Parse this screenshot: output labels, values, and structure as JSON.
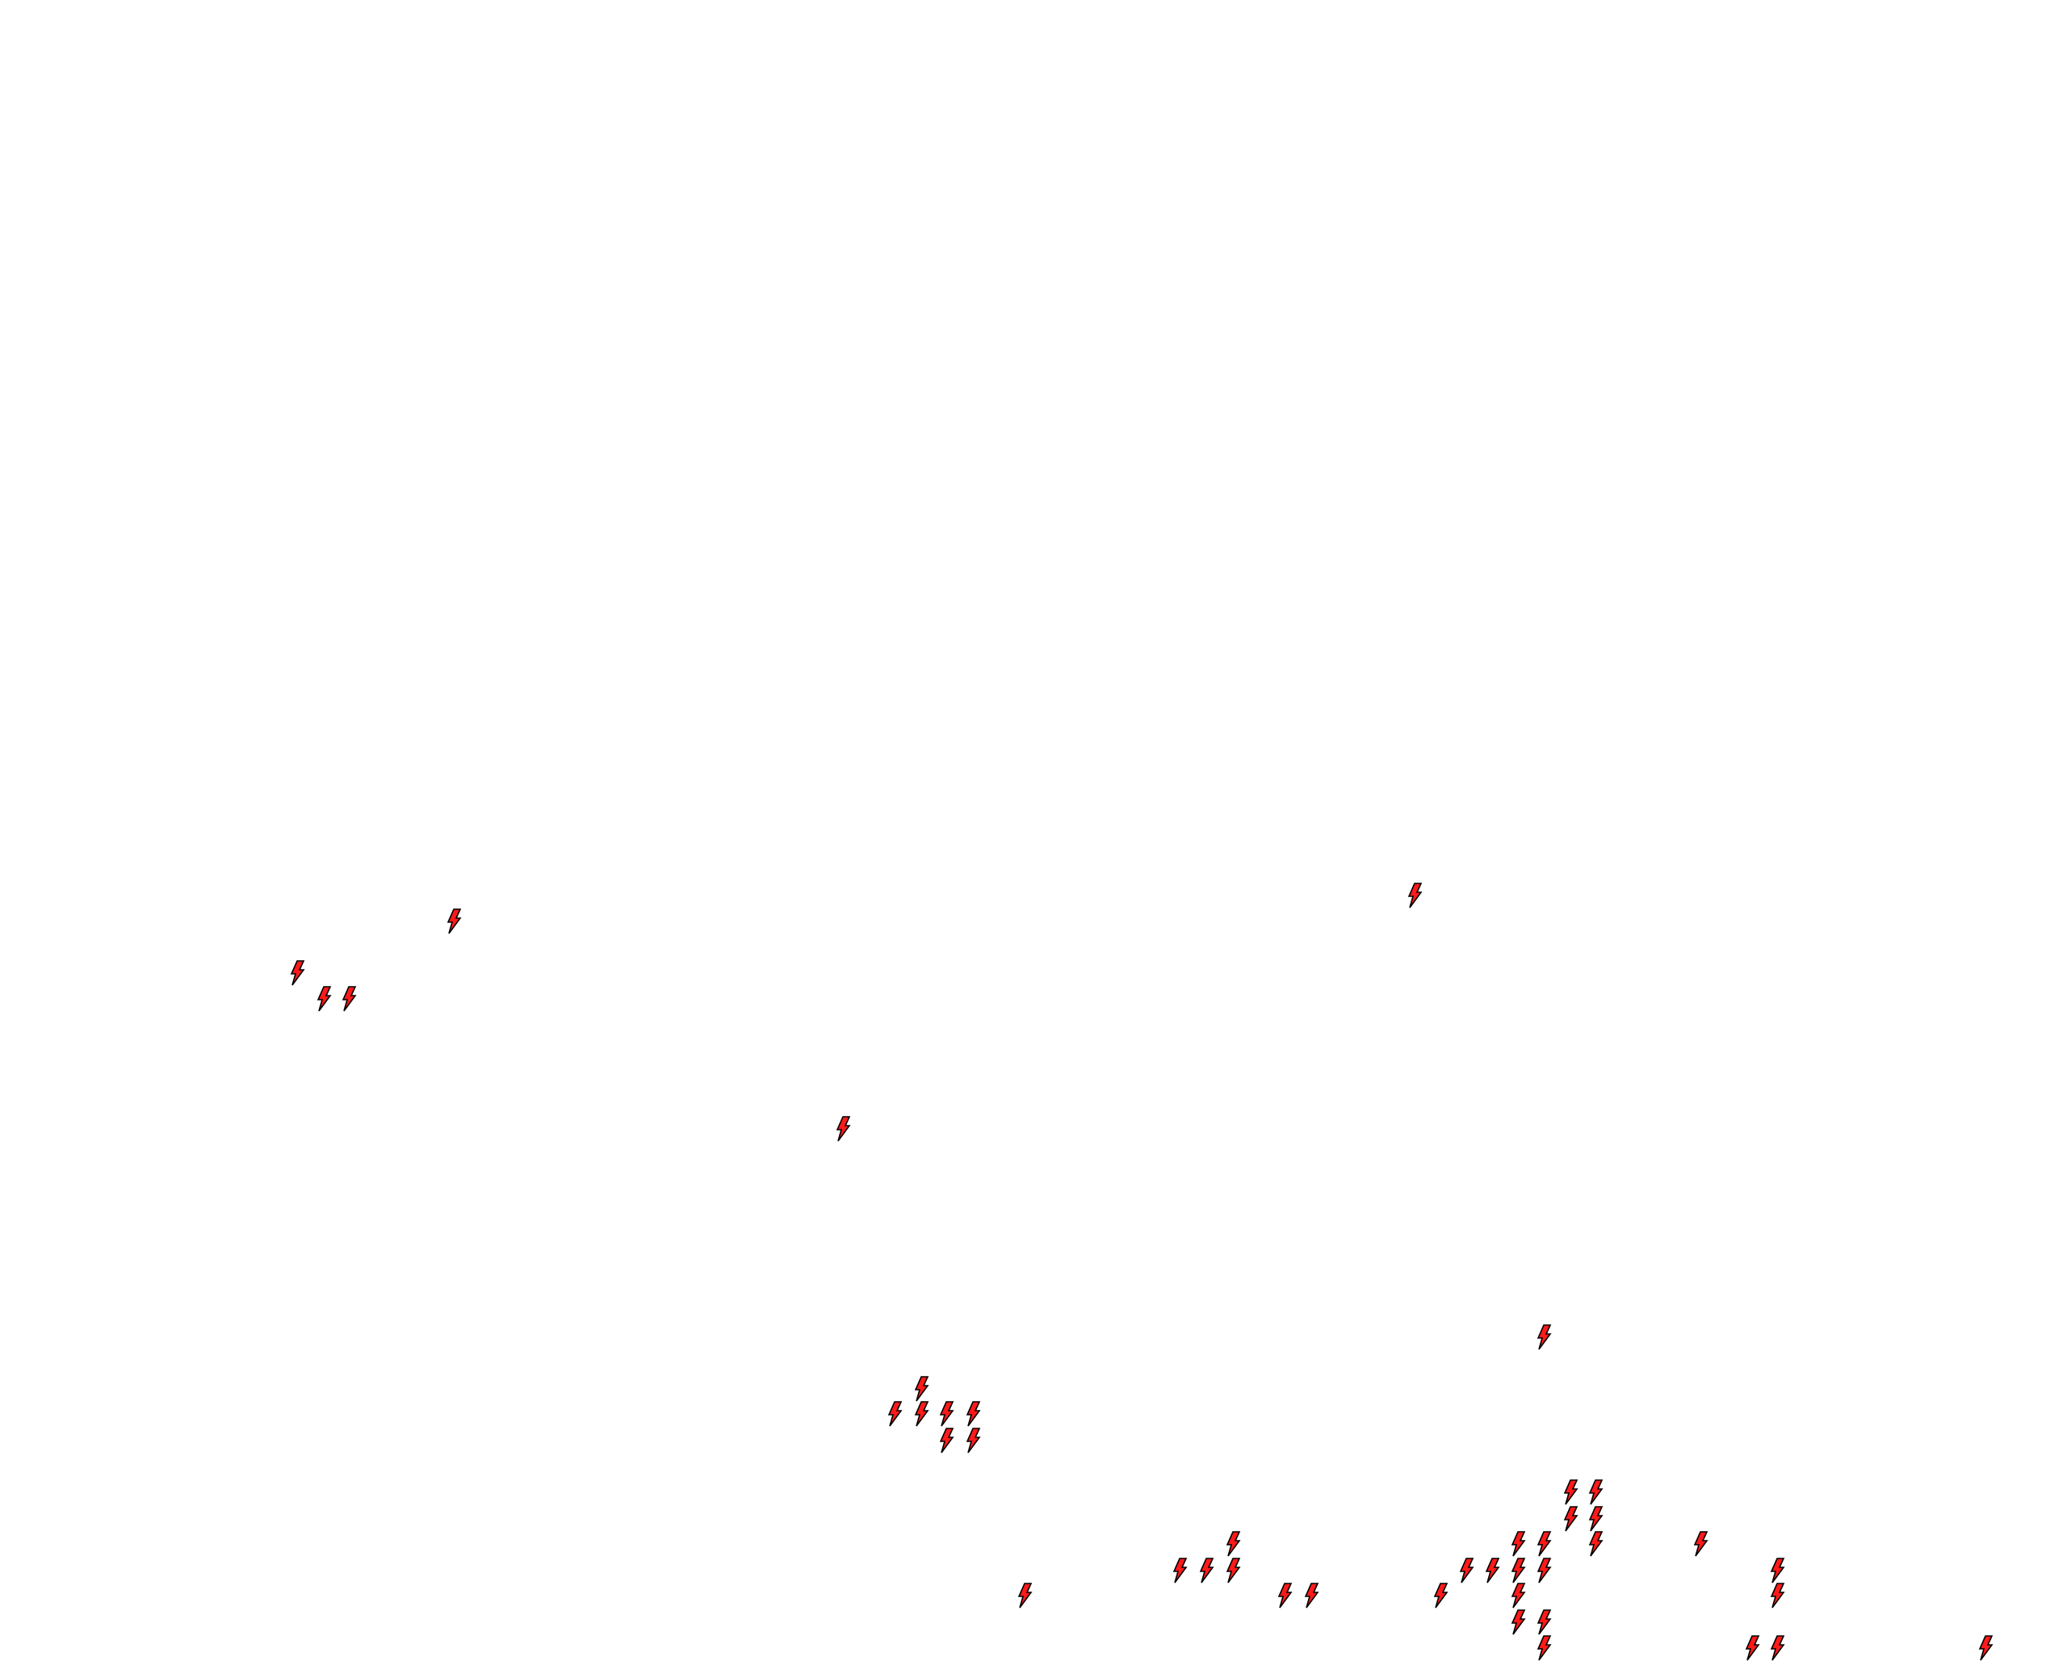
{
  "map": {
    "background_color": "#ffffff",
    "marker": {
      "icon": "lightning-bolt-icon",
      "fill_color": "#ff1a1a",
      "stroke_color": "#000000"
    }
  }
}
